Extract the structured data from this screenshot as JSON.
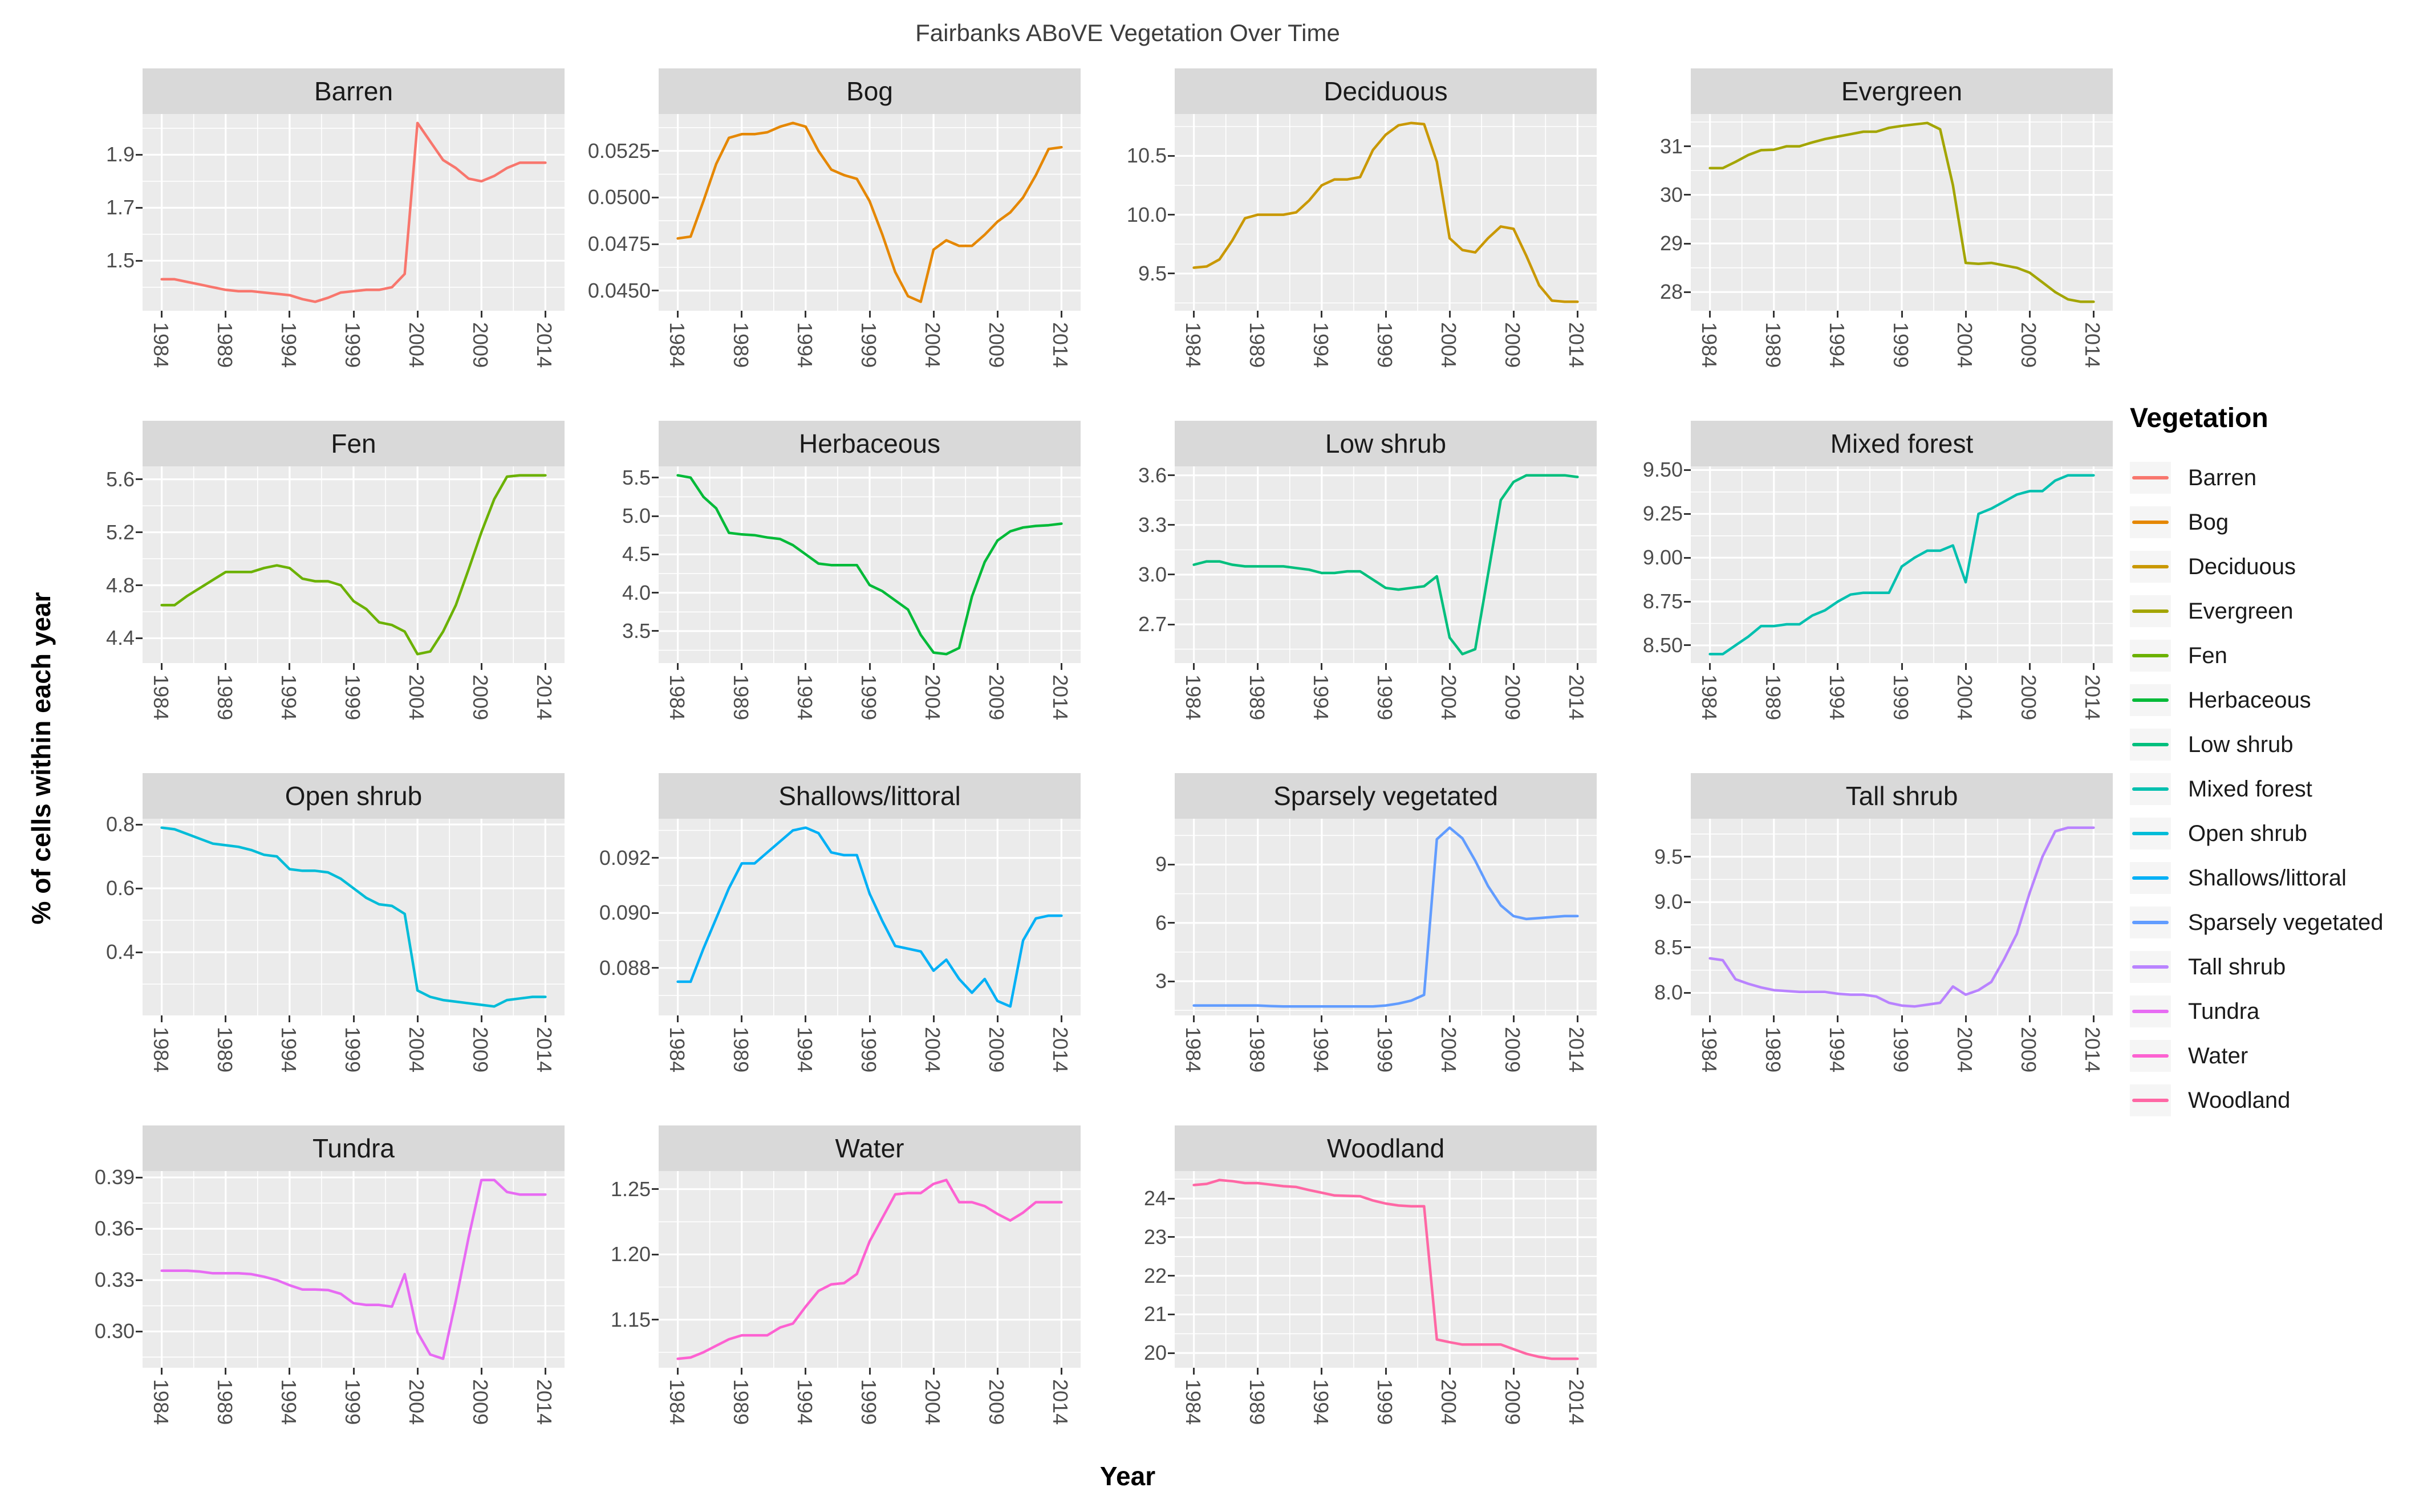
{
  "title": "Fairbanks ABoVE Vegetation Over Time",
  "x_axis_label": "Year",
  "y_axis_label": "% of cells within each year",
  "legend": {
    "title": "Vegetation",
    "entries": [
      {
        "label": "Barren",
        "color": "#F8766D"
      },
      {
        "label": "Bog",
        "color": "#E58700"
      },
      {
        "label": "Deciduous",
        "color": "#C99800"
      },
      {
        "label": "Evergreen",
        "color": "#A3A500"
      },
      {
        "label": "Fen",
        "color": "#6BB100"
      },
      {
        "label": "Herbaceous",
        "color": "#00BA38"
      },
      {
        "label": "Low shrub",
        "color": "#00BF7D"
      },
      {
        "label": "Mixed forest",
        "color": "#00C0AF"
      },
      {
        "label": "Open shrub",
        "color": "#00BCD8"
      },
      {
        "label": "Shallows/littoral",
        "color": "#00B0F6"
      },
      {
        "label": "Sparsely vegetated",
        "color": "#619CFF"
      },
      {
        "label": "Tall shrub",
        "color": "#B983FF"
      },
      {
        "label": "Tundra",
        "color": "#E76BF3"
      },
      {
        "label": "Water",
        "color": "#FD61D1"
      },
      {
        "label": "Woodland",
        "color": "#FF67A4"
      }
    ]
  },
  "theme": {
    "panel_bg": "#ebebeb",
    "strip_bg": "#d9d9d9",
    "grid_color": "#ffffff",
    "tick_text_color": "#4d4d4d"
  },
  "chart_data": {
    "type": "line",
    "faceted": true,
    "grid": true,
    "legend_position": "right",
    "x_label": "Year",
    "y_label": "% of cells within each year",
    "x_ticks": [
      1984,
      1989,
      1994,
      1999,
      2004,
      2009,
      2014
    ],
    "x_range": [
      1982.5,
      2015.5
    ],
    "x": [
      1984,
      1985,
      1986,
      1987,
      1988,
      1989,
      1990,
      1991,
      1992,
      1993,
      1994,
      1995,
      1996,
      1997,
      1998,
      1999,
      2000,
      2001,
      2002,
      2003,
      2004,
      2005,
      2006,
      2007,
      2008,
      2009,
      2010,
      2011,
      2012,
      2013,
      2014
    ],
    "facets": [
      {
        "name": "Barren",
        "color": "#F8766D",
        "y_tick_values": [
          1.5,
          1.7,
          1.9
        ],
        "y_tick_labels": [
          "1.5",
          "1.7",
          "1.9"
        ],
        "values": [
          1.43,
          1.43,
          1.42,
          1.41,
          1.4,
          1.39,
          1.385,
          1.385,
          1.38,
          1.375,
          1.37,
          1.355,
          1.345,
          1.36,
          1.38,
          1.385,
          1.39,
          1.39,
          1.4,
          1.45,
          2.02,
          1.95,
          1.88,
          1.85,
          1.81,
          1.8,
          1.82,
          1.85,
          1.87,
          1.87,
          1.87
        ]
      },
      {
        "name": "Bog",
        "color": "#E58700",
        "y_tick_values": [
          0.045,
          0.0475,
          0.05,
          0.0525
        ],
        "y_tick_labels": [
          "0.0450",
          "0.0475",
          "0.0500",
          "0.0525"
        ],
        "values": [
          0.0478,
          0.0479,
          0.0498,
          0.0518,
          0.0532,
          0.0534,
          0.0534,
          0.0535,
          0.0538,
          0.054,
          0.0538,
          0.0525,
          0.0515,
          0.0512,
          0.051,
          0.0498,
          0.048,
          0.046,
          0.0447,
          0.0444,
          0.0472,
          0.0477,
          0.0474,
          0.0474,
          0.048,
          0.0487,
          0.0492,
          0.05,
          0.0512,
          0.0526,
          0.0527
        ]
      },
      {
        "name": "Deciduous",
        "color": "#C99800",
        "y_tick_values": [
          9.5,
          10.0,
          10.5
        ],
        "y_tick_labels": [
          "9.5",
          "10.0",
          "10.5"
        ],
        "values": [
          9.55,
          9.56,
          9.62,
          9.78,
          9.97,
          10.0,
          10.0,
          10.0,
          10.02,
          10.12,
          10.25,
          10.3,
          10.3,
          10.32,
          10.55,
          10.68,
          10.76,
          10.78,
          10.77,
          10.45,
          9.8,
          9.7,
          9.68,
          9.8,
          9.9,
          9.88,
          9.65,
          9.4,
          9.27,
          9.26,
          9.26
        ]
      },
      {
        "name": "Evergreen",
        "color": "#A3A500",
        "y_tick_values": [
          28,
          29,
          30,
          31
        ],
        "y_tick_labels": [
          "28",
          "29",
          "30",
          "31"
        ],
        "values": [
          30.55,
          30.55,
          30.68,
          30.82,
          30.92,
          30.93,
          31.0,
          31.0,
          31.08,
          31.15,
          31.2,
          31.25,
          31.3,
          31.3,
          31.38,
          31.42,
          31.45,
          31.48,
          31.35,
          30.2,
          28.6,
          28.58,
          28.6,
          28.55,
          28.5,
          28.4,
          28.2,
          28.0,
          27.85,
          27.8,
          27.8
        ]
      },
      {
        "name": "Fen",
        "color": "#6BB100",
        "y_tick_values": [
          4.4,
          4.8,
          5.2,
          5.6
        ],
        "y_tick_labels": [
          "4.4",
          "4.8",
          "5.2",
          "5.6"
        ],
        "values": [
          4.65,
          4.65,
          4.72,
          4.78,
          4.84,
          4.9,
          4.9,
          4.9,
          4.93,
          4.95,
          4.93,
          4.85,
          4.83,
          4.83,
          4.8,
          4.68,
          4.62,
          4.52,
          4.5,
          4.45,
          4.28,
          4.3,
          4.45,
          4.65,
          4.92,
          5.2,
          5.45,
          5.62,
          5.63,
          5.63,
          5.63
        ]
      },
      {
        "name": "Herbaceous",
        "color": "#00BA38",
        "y_tick_values": [
          3.5,
          4.0,
          4.5,
          5.0,
          5.5
        ],
        "y_tick_labels": [
          "3.5",
          "4.0",
          "4.5",
          "5.0",
          "5.5"
        ],
        "values": [
          5.53,
          5.5,
          5.25,
          5.1,
          4.78,
          4.76,
          4.75,
          4.72,
          4.7,
          4.62,
          4.5,
          4.38,
          4.36,
          4.36,
          4.36,
          4.1,
          4.02,
          3.9,
          3.78,
          3.45,
          3.22,
          3.2,
          3.28,
          3.95,
          4.4,
          4.68,
          4.8,
          4.85,
          4.87,
          4.88,
          4.9
        ]
      },
      {
        "name": "Low shrub",
        "color": "#00BF7D",
        "y_tick_values": [
          2.7,
          3.0,
          3.3,
          3.6
        ],
        "y_tick_labels": [
          "2.7",
          "3.0",
          "3.3",
          "3.6"
        ],
        "values": [
          3.06,
          3.08,
          3.08,
          3.06,
          3.05,
          3.05,
          3.05,
          3.05,
          3.04,
          3.03,
          3.01,
          3.01,
          3.02,
          3.02,
          2.97,
          2.92,
          2.91,
          2.92,
          2.93,
          2.99,
          2.62,
          2.52,
          2.55,
          3.0,
          3.45,
          3.56,
          3.6,
          3.6,
          3.6,
          3.6,
          3.59
        ]
      },
      {
        "name": "Mixed forest",
        "color": "#00C0AF",
        "y_tick_values": [
          8.5,
          8.75,
          9.0,
          9.25,
          9.5
        ],
        "y_tick_labels": [
          "8.50",
          "8.75",
          "9.00",
          "9.25",
          "9.50"
        ],
        "values": [
          8.45,
          8.45,
          8.5,
          8.55,
          8.61,
          8.61,
          8.62,
          8.62,
          8.67,
          8.7,
          8.75,
          8.79,
          8.8,
          8.8,
          8.8,
          8.95,
          9.0,
          9.04,
          9.04,
          9.07,
          8.86,
          9.25,
          9.28,
          9.32,
          9.36,
          9.38,
          9.38,
          9.44,
          9.47,
          9.47,
          9.47
        ]
      },
      {
        "name": "Open shrub",
        "color": "#00BCD8",
        "y_tick_values": [
          0.2,
          0.4,
          0.6,
          0.8
        ],
        "y_tick_labels": [
          "0.2",
          "0.4",
          "0.6",
          "0.8"
        ],
        "values": [
          0.79,
          0.785,
          0.77,
          0.755,
          0.74,
          0.735,
          0.73,
          0.72,
          0.705,
          0.7,
          0.66,
          0.655,
          0.655,
          0.65,
          0.63,
          0.6,
          0.57,
          0.55,
          0.545,
          0.52,
          0.28,
          0.26,
          0.25,
          0.245,
          0.24,
          0.235,
          0.23,
          0.25,
          0.255,
          0.26,
          0.26
        ]
      },
      {
        "name": "Shallows/littoral",
        "color": "#00B0F6",
        "y_tick_values": [
          0.088,
          0.09,
          0.092
        ],
        "y_tick_labels": [
          "0.088",
          "0.090",
          "0.092"
        ],
        "values": [
          0.0875,
          0.0875,
          0.0887,
          0.0898,
          0.0909,
          0.0918,
          0.0918,
          0.0922,
          0.0926,
          0.093,
          0.0931,
          0.0929,
          0.0922,
          0.0921,
          0.0921,
          0.0907,
          0.0897,
          0.0888,
          0.0887,
          0.0886,
          0.0879,
          0.0883,
          0.0876,
          0.0871,
          0.0876,
          0.0868,
          0.0866,
          0.089,
          0.0898,
          0.0899,
          0.0899
        ]
      },
      {
        "name": "Sparsely vegetated",
        "color": "#619CFF",
        "y_tick_values": [
          3,
          6,
          9
        ],
        "y_tick_labels": [
          "3",
          "6",
          "9"
        ],
        "values": [
          1.75,
          1.75,
          1.75,
          1.75,
          1.75,
          1.75,
          1.72,
          1.7,
          1.7,
          1.7,
          1.7,
          1.7,
          1.7,
          1.7,
          1.7,
          1.75,
          1.85,
          2.0,
          2.3,
          10.3,
          10.9,
          10.35,
          9.2,
          7.9,
          6.9,
          6.35,
          6.2,
          6.25,
          6.3,
          6.35,
          6.35
        ]
      },
      {
        "name": "Tall shrub",
        "color": "#B983FF",
        "y_tick_values": [
          8.0,
          8.5,
          9.0,
          9.5
        ],
        "y_tick_labels": [
          "8.0",
          "8.5",
          "9.0",
          "9.5"
        ],
        "values": [
          8.38,
          8.36,
          8.15,
          8.1,
          8.06,
          8.03,
          8.02,
          8.01,
          8.01,
          8.01,
          7.99,
          7.98,
          7.98,
          7.96,
          7.89,
          7.86,
          7.85,
          7.87,
          7.89,
          8.07,
          7.98,
          8.03,
          8.12,
          8.37,
          8.65,
          9.1,
          9.5,
          9.78,
          9.82,
          9.82,
          9.82
        ]
      },
      {
        "name": "Tundra",
        "color": "#E76BF3",
        "y_tick_values": [
          0.3,
          0.33,
          0.36,
          0.39
        ],
        "y_tick_labels": [
          "0.30",
          "0.33",
          "0.36",
          "0.39"
        ],
        "values": [
          0.3355,
          0.3355,
          0.3355,
          0.335,
          0.334,
          0.334,
          0.334,
          0.3335,
          0.332,
          0.33,
          0.327,
          0.3245,
          0.3245,
          0.3242,
          0.322,
          0.3165,
          0.3155,
          0.3155,
          0.3145,
          0.3335,
          0.2995,
          0.2865,
          0.284,
          0.318,
          0.355,
          0.3885,
          0.3885,
          0.3815,
          0.38,
          0.38,
          0.38
        ]
      },
      {
        "name": "Water",
        "color": "#FD61D1",
        "y_tick_values": [
          1.15,
          1.2,
          1.25
        ],
        "y_tick_labels": [
          "1.15",
          "1.20",
          "1.25"
        ],
        "values": [
          1.12,
          1.121,
          1.125,
          1.13,
          1.135,
          1.138,
          1.138,
          1.138,
          1.144,
          1.147,
          1.16,
          1.172,
          1.177,
          1.178,
          1.185,
          1.21,
          1.228,
          1.246,
          1.247,
          1.247,
          1.254,
          1.257,
          1.24,
          1.24,
          1.237,
          1.231,
          1.226,
          1.232,
          1.24,
          1.24,
          1.24
        ]
      },
      {
        "name": "Woodland",
        "color": "#FF67A4",
        "y_tick_values": [
          20,
          21,
          22,
          23,
          24
        ],
        "y_tick_labels": [
          "20",
          "21",
          "22",
          "23",
          "24"
        ],
        "values": [
          24.35,
          24.38,
          24.48,
          24.45,
          24.4,
          24.4,
          24.36,
          24.32,
          24.3,
          24.22,
          24.15,
          24.08,
          24.07,
          24.06,
          23.95,
          23.87,
          23.82,
          23.8,
          23.8,
          20.35,
          20.28,
          20.22,
          20.22,
          20.22,
          20.22,
          20.1,
          19.98,
          19.9,
          19.85,
          19.85,
          19.85
        ]
      }
    ]
  }
}
